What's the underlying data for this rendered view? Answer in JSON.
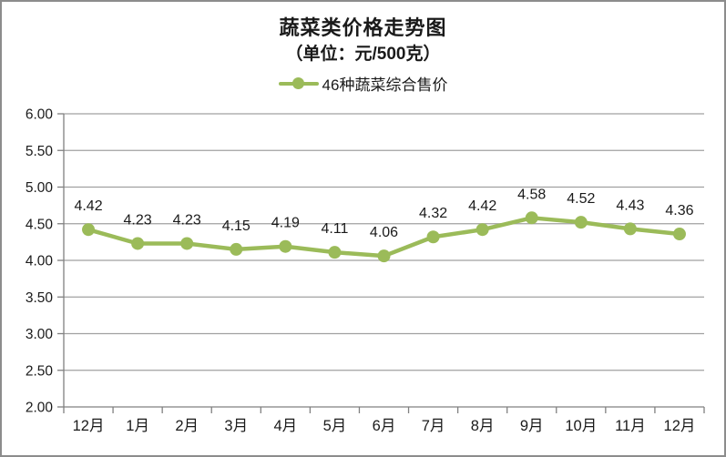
{
  "window": {
    "background": "#ffffff",
    "border_color": "#8c8c8c"
  },
  "chart_data": {
    "type": "line",
    "title": "蔬菜类价格走势图",
    "subtitle": "（单位：元/500克）",
    "categories": [
      "12月",
      "1月",
      "2月",
      "3月",
      "4月",
      "5月",
      "6月",
      "7月",
      "8月",
      "9月",
      "10月",
      "11月",
      "12月"
    ],
    "series": [
      {
        "name": "46种蔬菜综合售价",
        "values": [
          4.42,
          4.23,
          4.23,
          4.15,
          4.19,
          4.11,
          4.06,
          4.32,
          4.42,
          4.58,
          4.52,
          4.43,
          4.36
        ]
      }
    ],
    "xlabel": "",
    "ylabel": "",
    "ylim": [
      2.0,
      6.0
    ],
    "ytick_step": 0.5,
    "ytick_decimals": 2,
    "grid": true,
    "data_labels": true,
    "legend_position": "top",
    "colors": {
      "series": "#9BBB59",
      "grid": "#a0a0a0",
      "axis": "#808080",
      "text": "#1a1a1a"
    }
  }
}
